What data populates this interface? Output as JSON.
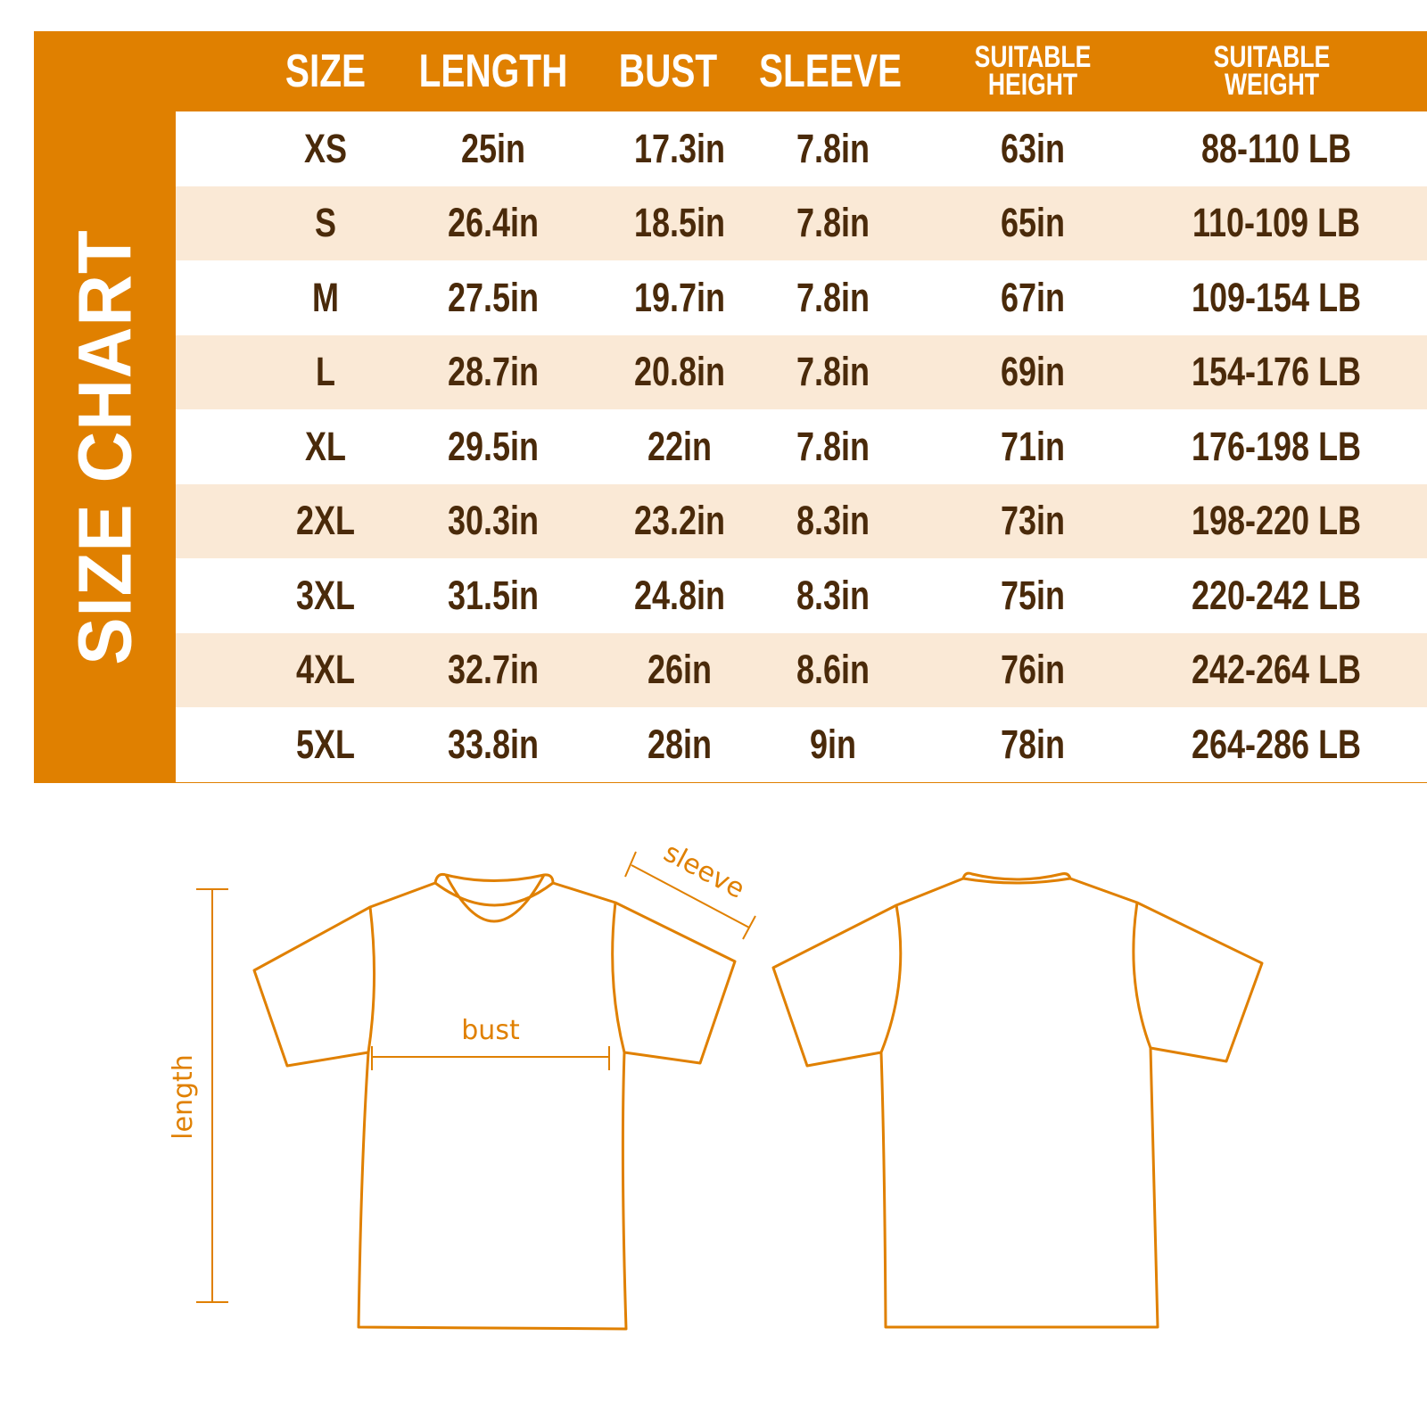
{
  "title": "SIZE CHART",
  "colors": {
    "accent": "#e08000",
    "stripe": "#fae9d6",
    "text": "#4a2a0a"
  },
  "columns": [
    "SIZE",
    "LENGTH",
    "BUST",
    "SLEEVE",
    "SUITABLE HEIGHT",
    "SUITABLE WEIGHT"
  ],
  "rows": [
    [
      "XS",
      "25in",
      "17.3in",
      "7.8in",
      "63in",
      "88-110 LB"
    ],
    [
      "S",
      "26.4in",
      "18.5in",
      "7.8in",
      "65in",
      "110-109 LB"
    ],
    [
      "M",
      "27.5in",
      "19.7in",
      "7.8in",
      "67in",
      "109-154 LB"
    ],
    [
      "L",
      "28.7in",
      "20.8in",
      "7.8in",
      "69in",
      "154-176 LB"
    ],
    [
      "XL",
      "29.5in",
      "22in",
      "7.8in",
      "71in",
      "176-198 LB"
    ],
    [
      "2XL",
      "30.3in",
      "23.2in",
      "8.3in",
      "73in",
      "198-220 LB"
    ],
    [
      "3XL",
      "31.5in",
      "24.8in",
      "8.3in",
      "75in",
      "220-242 LB"
    ],
    [
      "4XL",
      "32.7in",
      "26in",
      "8.6in",
      "76in",
      "242-264 LB"
    ],
    [
      "5XL",
      "33.8in",
      "28in",
      "9in",
      "78in",
      "264-286 LB"
    ]
  ],
  "diagram": {
    "sleeve_label": "sleeve",
    "bust_label": "bust",
    "length_label": "length"
  }
}
